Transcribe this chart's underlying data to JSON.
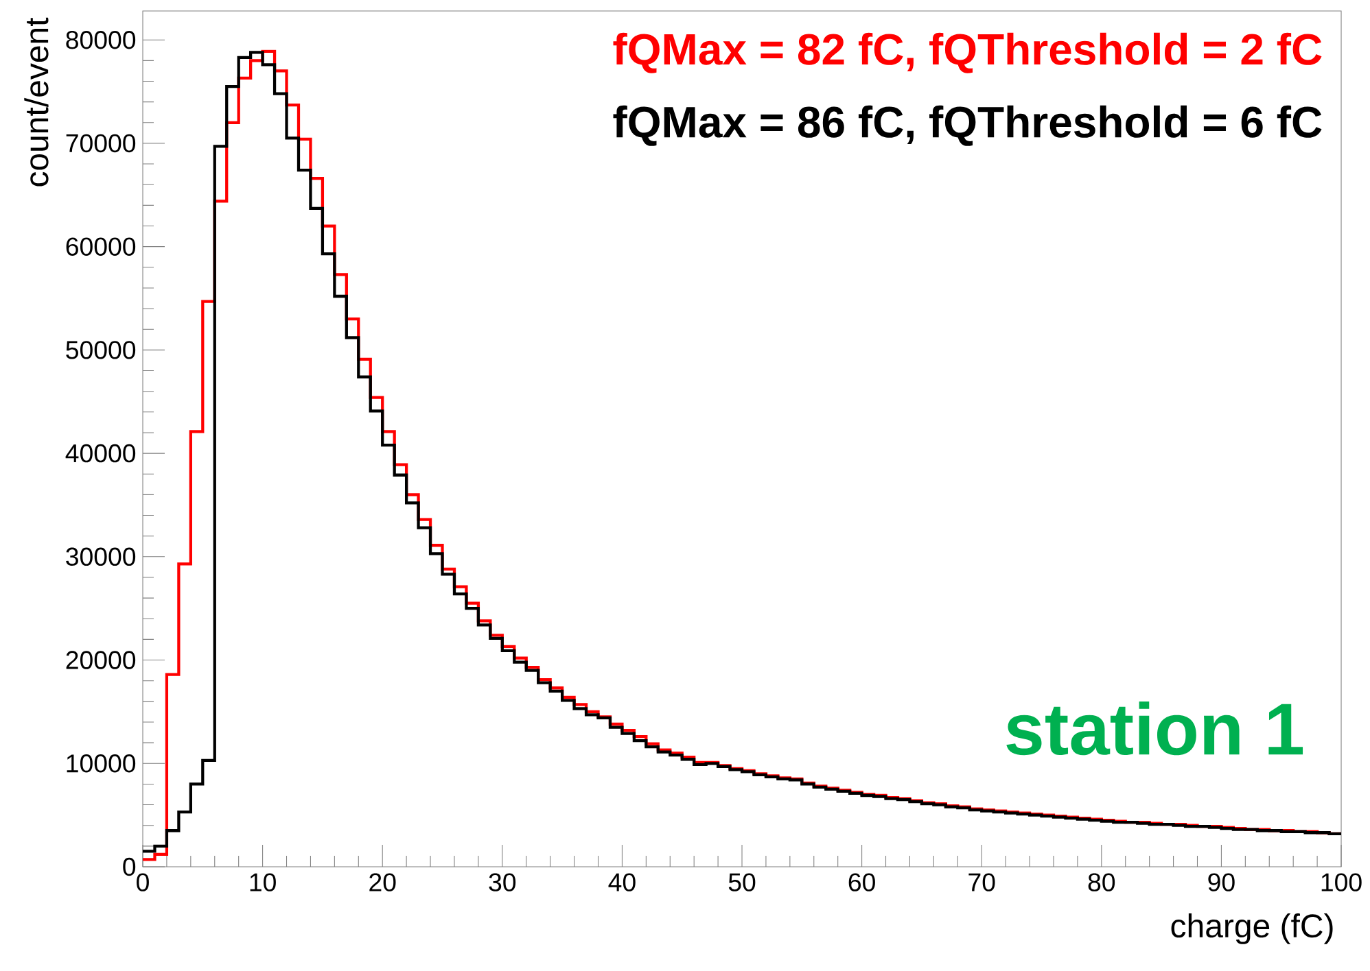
{
  "chart_data": {
    "type": "histogram",
    "xlabel": "charge (fC)",
    "ylabel": "count/event",
    "bins": [
      0,
      1,
      2,
      3,
      4,
      5,
      6,
      7,
      8,
      9,
      10,
      11,
      12,
      13,
      14,
      15,
      16,
      17,
      18,
      19,
      20,
      21,
      22,
      23,
      24,
      25,
      26,
      27,
      28,
      29,
      30,
      31,
      32,
      33,
      34,
      35,
      36,
      37,
      38,
      39,
      40,
      41,
      42,
      43,
      44,
      45,
      46,
      47,
      48,
      49,
      50,
      51,
      52,
      53,
      54,
      55,
      56,
      57,
      58,
      59,
      60,
      61,
      62,
      63,
      64,
      65,
      66,
      67,
      68,
      69,
      70,
      71,
      72,
      73,
      74,
      75,
      76,
      77,
      78,
      79,
      80,
      81,
      82,
      83,
      84,
      85,
      86,
      87,
      88,
      89,
      90,
      91,
      92,
      93,
      94,
      95,
      96,
      97,
      98,
      99,
      100
    ],
    "series": [
      {
        "name": "fQMax = 82 fC, fQThreshold = 2 fC",
        "color": "#ff0000",
        "values": [
          700,
          1200,
          18600,
          29300,
          42100,
          54700,
          64400,
          72000,
          76300,
          78000,
          78900,
          77000,
          73700,
          70400,
          66600,
          62000,
          57300,
          53000,
          49100,
          45400,
          42100,
          38900,
          36000,
          33600,
          31100,
          28800,
          27100,
          25500,
          23800,
          22400,
          21300,
          20200,
          19300,
          18100,
          17300,
          16400,
          15700,
          15000,
          14500,
          13800,
          13200,
          12600,
          11900,
          11300,
          11000,
          10600,
          10100,
          10100,
          9800,
          9500,
          9300,
          9000,
          8800,
          8600,
          8500,
          8100,
          7800,
          7600,
          7400,
          7200,
          7000,
          6900,
          6700,
          6600,
          6400,
          6200,
          6100,
          5900,
          5800,
          5600,
          5500,
          5400,
          5300,
          5200,
          5100,
          5000,
          4900,
          4800,
          4700,
          4600,
          4500,
          4400,
          4300,
          4300,
          4200,
          4100,
          4100,
          4000,
          3900,
          3900,
          3800,
          3700,
          3600,
          3600,
          3500,
          3500,
          3400,
          3400,
          3300,
          3200
        ]
      },
      {
        "name": "fQMax = 86 fC, fQThreshold = 6 fC",
        "color": "#000000",
        "values": [
          1500,
          2000,
          3500,
          5300,
          8000,
          10300,
          69700,
          75500,
          78300,
          78800,
          77600,
          74800,
          70500,
          67400,
          63700,
          59300,
          55200,
          51200,
          47400,
          44100,
          40800,
          37900,
          35200,
          32800,
          30300,
          28300,
          26400,
          25000,
          23400,
          22100,
          20900,
          19800,
          19000,
          17800,
          17000,
          16100,
          15300,
          14700,
          14400,
          13500,
          12900,
          12200,
          11600,
          11100,
          10800,
          10400,
          9900,
          10000,
          9700,
          9400,
          9200,
          8900,
          8700,
          8500,
          8400,
          8000,
          7700,
          7500,
          7300,
          7100,
          6900,
          6800,
          6600,
          6500,
          6300,
          6100,
          6000,
          5800,
          5700,
          5500,
          5400,
          5300,
          5200,
          5100,
          5000,
          4900,
          4800,
          4700,
          4600,
          4500,
          4400,
          4300,
          4300,
          4200,
          4100,
          4100,
          4000,
          3900,
          3900,
          3800,
          3700,
          3600,
          3600,
          3500,
          3500,
          3400,
          3400,
          3300,
          3300,
          3200
        ]
      }
    ],
    "annotations": [
      "station 1"
    ],
    "xlim": [
      0,
      100
    ],
    "ylim": [
      0,
      82800
    ],
    "xticks": [
      0,
      10,
      20,
      30,
      40,
      50,
      60,
      70,
      80,
      90,
      100
    ],
    "yticks": [
      0,
      10000,
      20000,
      30000,
      40000,
      50000,
      60000,
      70000,
      80000
    ]
  }
}
